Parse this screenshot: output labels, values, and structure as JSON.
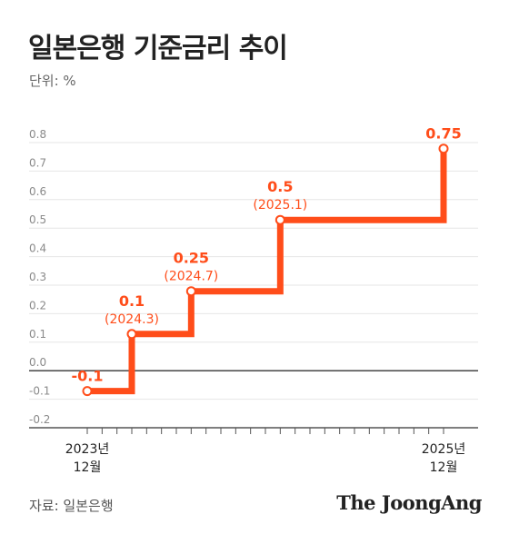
{
  "title": "일본은행 기준금리 추이",
  "unit_label": "단위: %",
  "source": "자료: 일본은행",
  "brand": "The JoongAng",
  "colors": {
    "line": "#ff4d1a",
    "grid": "#e6e6e6",
    "zero_line": "#333333",
    "axis_text": "#8a8a8a"
  },
  "chart_data": {
    "type": "line",
    "step": "after",
    "title": "일본은행 기준금리 추이",
    "ylabel": "단위: %",
    "ylim": [
      -0.2,
      0.8
    ],
    "yticks": [
      "0.8",
      "0.7",
      "0.6",
      "0.5",
      "0.4",
      "0.3",
      "0.2",
      "0.1",
      "0.0",
      "-0.1",
      "-0.2"
    ],
    "ytick_values": [
      0.8,
      0.7,
      0.6,
      0.5,
      0.4,
      0.3,
      0.2,
      0.1,
      0.0,
      -0.1,
      -0.2
    ],
    "xlim": [
      "2023-12",
      "2025-12"
    ],
    "x_labels": [
      {
        "x": "2023-12",
        "line1": "2023년",
        "line2": "12월"
      },
      {
        "x": "2025-12",
        "line1": "2025년",
        "line2": "12월"
      }
    ],
    "series": [
      {
        "x": [
          "2023-12",
          "2024-03",
          "2024-07",
          "2025-01",
          "2025-12"
        ],
        "y": [
          -0.1,
          0.1,
          0.25,
          0.5,
          0.75
        ]
      }
    ],
    "point_labels": [
      {
        "x": "2023-12",
        "value": "-0.1",
        "date": ""
      },
      {
        "x": "2024-03",
        "value": "0.1",
        "date": "(2024.3)"
      },
      {
        "x": "2024-07",
        "value": "0.25",
        "date": "(2024.7)"
      },
      {
        "x": "2025-01",
        "value": "0.5",
        "date": "(2025.1)"
      },
      {
        "x": "2025-12",
        "value": "0.75",
        "date": ""
      }
    ],
    "grid": true
  }
}
